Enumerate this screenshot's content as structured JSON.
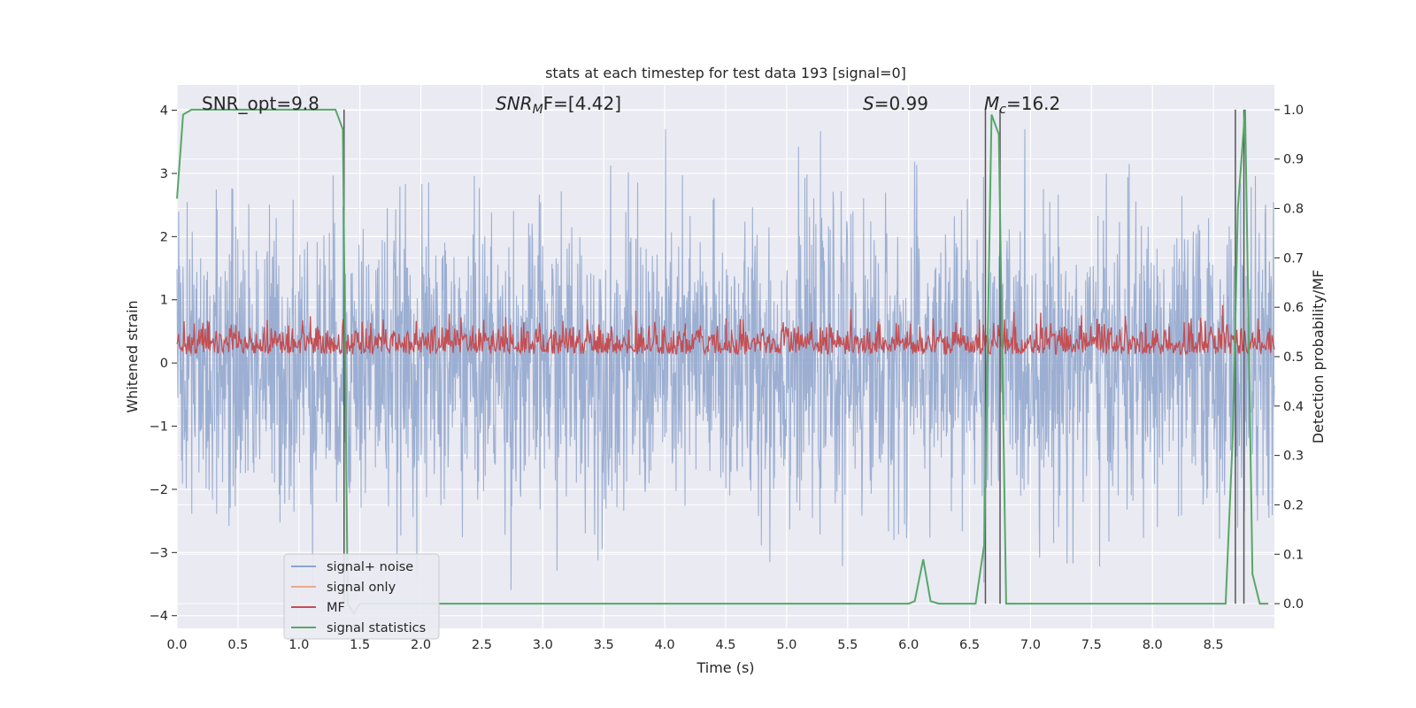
{
  "chart_data": {
    "type": "line",
    "title": "stats at each timestep for test data 193 [signal=0]",
    "xlabel": "Time (s)",
    "ylabel_left": "Whitened strain",
    "ylabel_right": "Detection probability/MF",
    "xlim": [
      0.0,
      9.0
    ],
    "ylim_left": [
      -4.2,
      4.4
    ],
    "ylim_right": [
      -0.05,
      1.05
    ],
    "x_ticks": [
      "0.0",
      "0.5",
      "1.0",
      "1.5",
      "2.0",
      "2.5",
      "3.0",
      "3.5",
      "4.0",
      "4.5",
      "5.0",
      "5.5",
      "6.0",
      "6.5",
      "7.0",
      "7.5",
      "8.0",
      "8.5"
    ],
    "y_left_ticks": [
      "−4",
      "−3",
      "−2",
      "−1",
      "0",
      "1",
      "2",
      "3",
      "4"
    ],
    "y_right_ticks": [
      "0.0",
      "0.1",
      "0.2",
      "0.3",
      "0.4",
      "0.5",
      "0.6",
      "0.7",
      "0.8",
      "0.9",
      "1.0"
    ],
    "grid": true,
    "legend_position": "lower-left",
    "annotations": {
      "snr_opt": "SNR_opt=9.8",
      "snr_mf_prefix": "SNR",
      "snr_mf_sub": "M",
      "snr_mf_suffix": "F=[4.42]",
      "s_label": "S",
      "s_value": "=0.99",
      "mc_label": "M",
      "mc_sub": "c",
      "mc_value": "=16.2"
    },
    "series": [
      {
        "name": "signal+ noise",
        "color": "#8ea4cc",
        "axis": "left",
        "note": "noise band roughly between -2.5 and 2.5 with spikes to about ±3.7"
      },
      {
        "name": "signal only",
        "color": "#e8a98c",
        "axis": "left"
      },
      {
        "name": "MF",
        "color": "#c44e52",
        "axis": "right",
        "range_approx": [
          0.5,
          0.62
        ]
      },
      {
        "name": "signal statistics",
        "color": "#55a868",
        "axis": "right",
        "x": [
          0.0,
          0.05,
          0.12,
          0.3,
          1.0,
          1.3,
          1.36,
          1.4,
          1.45,
          1.5,
          2.0,
          3.0,
          4.0,
          5.0,
          6.0,
          6.05,
          6.12,
          6.18,
          6.25,
          6.55,
          6.62,
          6.68,
          6.74,
          6.8,
          6.9,
          7.5,
          8.0,
          8.6,
          8.66,
          8.7,
          8.76,
          8.82,
          8.88,
          8.95
        ],
        "y": [
          0.82,
          0.99,
          1.0,
          1.0,
          1.0,
          1.0,
          0.96,
          0.0,
          -0.02,
          0.0,
          0.0,
          0.0,
          0.0,
          0.0,
          0.0,
          0.005,
          0.09,
          0.005,
          0.0,
          0.0,
          0.12,
          0.99,
          0.95,
          0.0,
          0.0,
          0.0,
          0.0,
          0.0,
          0.35,
          0.8,
          1.0,
          0.06,
          0.0,
          0.0
        ]
      }
    ],
    "vertical_markers_x": [
      1.37,
      6.63,
      6.75,
      8.68,
      8.75
    ]
  }
}
